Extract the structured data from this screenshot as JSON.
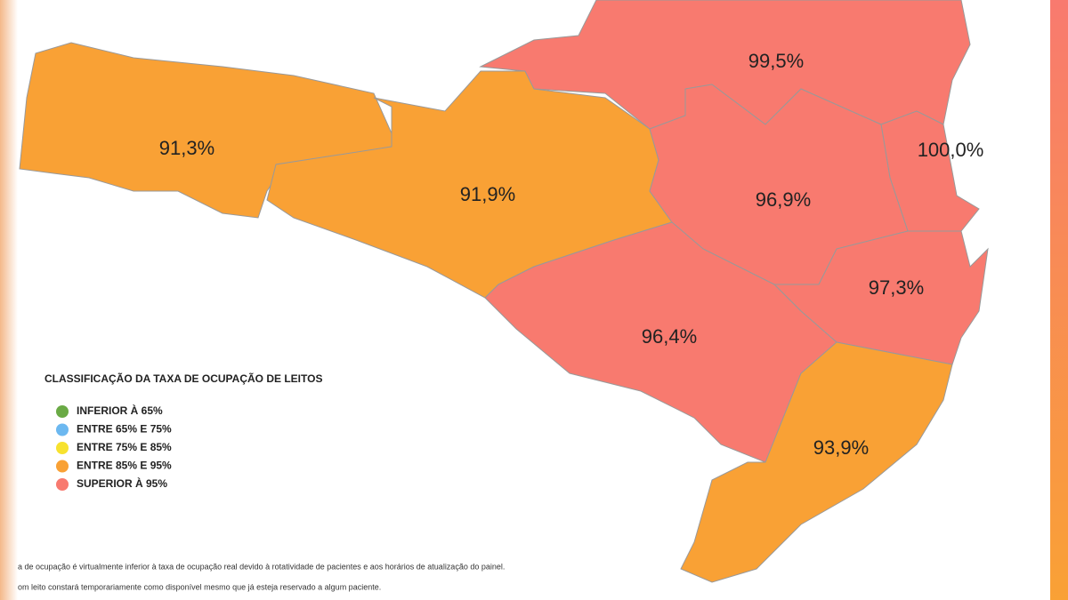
{
  "map": {
    "regions": [
      {
        "label": "91,3%",
        "color": "#f9a135"
      },
      {
        "label": "91,9%",
        "color": "#f9a135"
      },
      {
        "label": "99,5%",
        "color": "#f87a6f"
      },
      {
        "label": "100,0%",
        "color": "#f87a6f"
      },
      {
        "label": "96,9%",
        "color": "#f87a6f"
      },
      {
        "label": "97,3%",
        "color": "#f87a6f"
      },
      {
        "label": "96,4%",
        "color": "#f87a6f"
      },
      {
        "label": "93,9%",
        "color": "#f9a135"
      }
    ]
  },
  "legend": {
    "title": "CLASSIFICAÇÃO DA TAXA DE OCUPAÇÃO DE LEITOS",
    "items": [
      {
        "label": "INFERIOR À 65%",
        "color": "#6aaa45"
      },
      {
        "label": "ENTRE 65% E 75%",
        "color": "#6cb8f0"
      },
      {
        "label": "ENTRE 75% E 85%",
        "color": "#f7e22f"
      },
      {
        "label": "ENTRE 85% E 95%",
        "color": "#f9a135"
      },
      {
        "label": "SUPERIOR À 95%",
        "color": "#f87a6f"
      }
    ]
  },
  "footnotes": [
    "a de ocupação é virtualmente inferior à taxa de ocupação real devido à rotatividade de pacientes e aos horários de atualização do painel.",
    "om leito constará temporariamente como disponível mesmo que já esteja reservado a algum paciente."
  ]
}
